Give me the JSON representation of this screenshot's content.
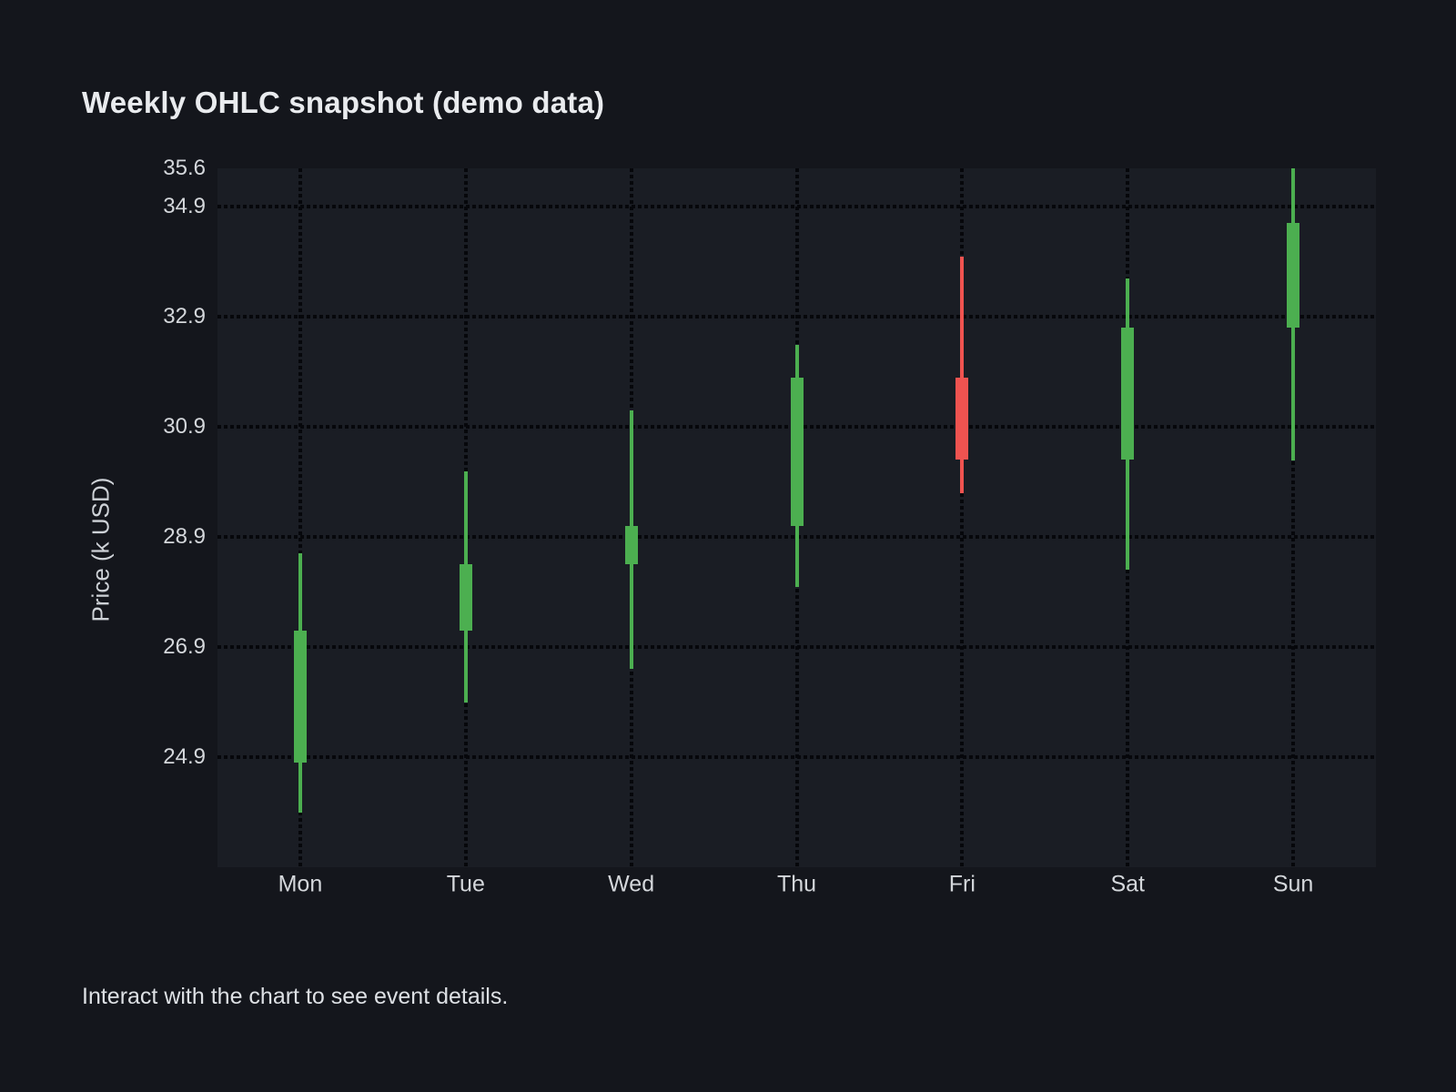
{
  "header": {
    "title": "Weekly OHLC snapshot (demo data)"
  },
  "footer": {
    "note": "Interact with the chart to see event details."
  },
  "chart_data": {
    "type": "candlestick",
    "title": "Weekly OHLC snapshot (demo data)",
    "xlabel": "",
    "ylabel": "Price (k USD)",
    "categories": [
      "Mon",
      "Tue",
      "Wed",
      "Thu",
      "Fri",
      "Sat",
      "Sun"
    ],
    "series": [
      {
        "name": "Weekly OHLC",
        "points": [
          {
            "day": "Mon",
            "open": 24.8,
            "high": 28.6,
            "low": 23.9,
            "close": 27.2,
            "direction": "up"
          },
          {
            "day": "Tue",
            "open": 27.2,
            "high": 30.1,
            "low": 25.9,
            "close": 28.4,
            "direction": "up"
          },
          {
            "day": "Wed",
            "open": 28.4,
            "high": 31.2,
            "low": 26.5,
            "close": 29.1,
            "direction": "up"
          },
          {
            "day": "Thu",
            "open": 29.1,
            "high": 32.4,
            "low": 28.0,
            "close": 31.8,
            "direction": "up"
          },
          {
            "day": "Fri",
            "open": 31.8,
            "high": 34.0,
            "low": 29.7,
            "close": 30.3,
            "direction": "down"
          },
          {
            "day": "Sat",
            "open": 30.3,
            "high": 33.6,
            "low": 28.3,
            "close": 32.7,
            "direction": "up"
          },
          {
            "day": "Sun",
            "open": 32.7,
            "high": 35.6,
            "low": 30.3,
            "close": 34.6,
            "direction": "up"
          }
        ]
      }
    ],
    "ylim": [
      22.9,
      35.6
    ],
    "yticks": [
      {
        "value": 35.6,
        "label": "35.6",
        "gridline": false
      },
      {
        "value": 34.9,
        "label": "34.9",
        "gridline": true
      },
      {
        "value": 32.9,
        "label": "32.9",
        "gridline": true
      },
      {
        "value": 30.9,
        "label": "30.9",
        "gridline": true
      },
      {
        "value": 28.9,
        "label": "28.9",
        "gridline": true
      },
      {
        "value": 26.9,
        "label": "26.9",
        "gridline": true
      },
      {
        "value": 24.9,
        "label": "24.9",
        "gridline": true
      }
    ],
    "grid": "dotted-black",
    "legend": "none",
    "colors": {
      "up": "#4caf50",
      "down": "#ef5350",
      "page_background": "#14161c",
      "plot_background": "#1a1d24",
      "text": "#d4d7db"
    }
  }
}
